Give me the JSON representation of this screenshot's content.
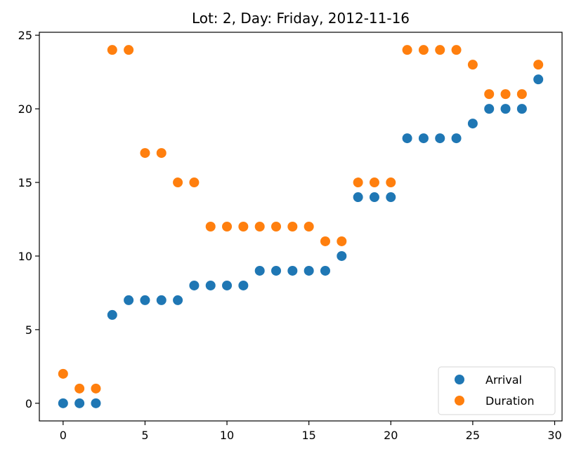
{
  "chart_data": {
    "type": "scatter",
    "title": "Lot: 2, Day: Friday, 2012-11-16",
    "xlabel": "",
    "ylabel": "",
    "xlim": [
      -1.45,
      30.45
    ],
    "ylim": [
      -1.2,
      25.2
    ],
    "x_ticks": [
      0,
      5,
      10,
      15,
      20,
      25,
      30
    ],
    "y_ticks": [
      0,
      5,
      10,
      15,
      20,
      25
    ],
    "grid": false,
    "legend_position": "bottom-right",
    "x": [
      0,
      1,
      2,
      3,
      4,
      5,
      6,
      7,
      8,
      9,
      10,
      11,
      12,
      13,
      14,
      15,
      16,
      17,
      18,
      19,
      20,
      21,
      22,
      23,
      24,
      25,
      26,
      27,
      28,
      29
    ],
    "series": [
      {
        "name": "Arrival",
        "color": "#1f77b4",
        "values": [
          0,
          0,
          0,
          6,
          7,
          7,
          7,
          7,
          8,
          8,
          8,
          8,
          9,
          9,
          9,
          9,
          9,
          10,
          14,
          14,
          14,
          18,
          18,
          18,
          18,
          19,
          20,
          20,
          20,
          22
        ]
      },
      {
        "name": "Duration",
        "color": "#ff7f0e",
        "values": [
          2,
          1,
          1,
          24,
          24,
          17,
          17,
          15,
          15,
          12,
          12,
          12,
          12,
          12,
          12,
          12,
          11,
          11,
          15,
          15,
          15,
          24,
          24,
          24,
          24,
          23,
          21,
          21,
          21,
          23
        ]
      }
    ]
  }
}
